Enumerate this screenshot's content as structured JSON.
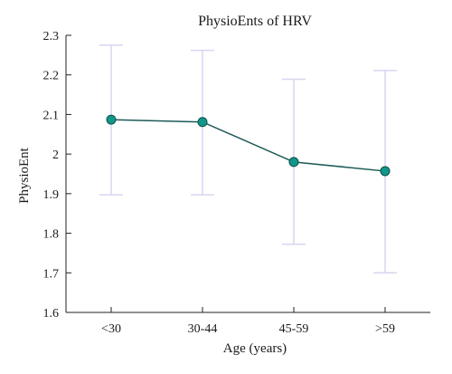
{
  "chart_data": {
    "type": "line",
    "title": "PhysioEnts of HRV",
    "xlabel": "Age (years)",
    "ylabel": "PhysioEnt",
    "categories": [
      "<30",
      "30-44",
      "45-59",
      ">59"
    ],
    "series": [
      {
        "values": [
          2.087,
          2.081,
          1.98,
          1.957
        ],
        "error_low": [
          1.897,
          1.897,
          1.772,
          1.7
        ],
        "error_high": [
          2.275,
          2.262,
          2.189,
          2.211
        ]
      }
    ],
    "ylim": [
      1.6,
      2.3
    ],
    "yticks": [
      1.6,
      1.7,
      1.8,
      1.9,
      2.0,
      2.1,
      2.2,
      2.3
    ],
    "ytick_labels": [
      "1.6",
      "1.7",
      "1.8",
      "1.9",
      "2",
      "2.1",
      "2.2",
      "2.3"
    ],
    "grid": false,
    "colors": {
      "line": "#1d5a57",
      "marker_fill": "#11968a",
      "marker_edge": "#0d4f4a",
      "error_bar": "#d6d6f0",
      "axis": "#222222"
    }
  }
}
